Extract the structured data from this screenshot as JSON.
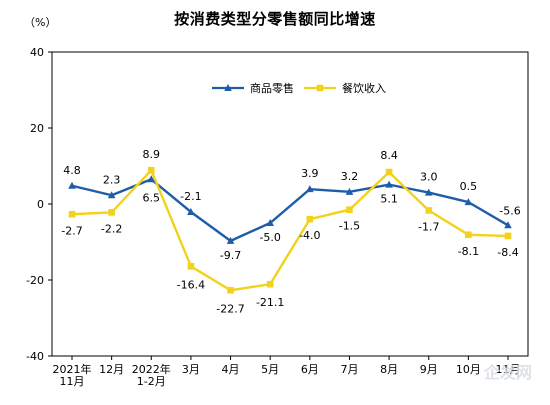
{
  "chart_data": {
    "type": "line",
    "title": "按消费类型分零售额同比增速",
    "ylabel": "（%）",
    "ylim": [
      -40,
      40
    ],
    "yticks": [
      40,
      20,
      0,
      -20,
      -40
    ],
    "x": [
      [
        "2021年",
        "11月"
      ],
      [
        "12月"
      ],
      [
        "2022年",
        "1-2月"
      ],
      [
        "3月"
      ],
      [
        "4月"
      ],
      [
        "5月"
      ],
      [
        "6月"
      ],
      [
        "7月"
      ],
      [
        "8月"
      ],
      [
        "9月"
      ],
      [
        "10月"
      ],
      [
        "11月"
      ]
    ],
    "series": [
      {
        "name": "商品零售",
        "color": "#1f5da8",
        "marker": "triangle",
        "values": [
          4.8,
          2.3,
          6.5,
          -2.1,
          -9.7,
          -5.0,
          3.9,
          3.2,
          5.1,
          3.0,
          0.5,
          -5.6
        ],
        "labels": [
          "4.8",
          "2.3",
          "6.5",
          "-2.1",
          "-9.7",
          "-5.0",
          "3.9",
          "3.2",
          "5.1",
          "3.0",
          "0.5",
          "-5.6"
        ]
      },
      {
        "name": "餐饮收入",
        "color": "#f2d21b",
        "marker": "square",
        "values": [
          -2.7,
          -2.2,
          8.9,
          -16.4,
          -22.7,
          -21.1,
          -4.0,
          -1.5,
          8.4,
          -1.7,
          -8.1,
          -8.4
        ],
        "labels": [
          "-2.7",
          "-2.2",
          "8.9",
          "-16.4",
          "-22.7",
          "-21.1",
          "-4.0",
          "-1.5",
          "8.4",
          "-1.7",
          "-8.1",
          "-8.4"
        ]
      }
    ],
    "legend": "top-right",
    "grid": false
  },
  "watermark": "企发网"
}
